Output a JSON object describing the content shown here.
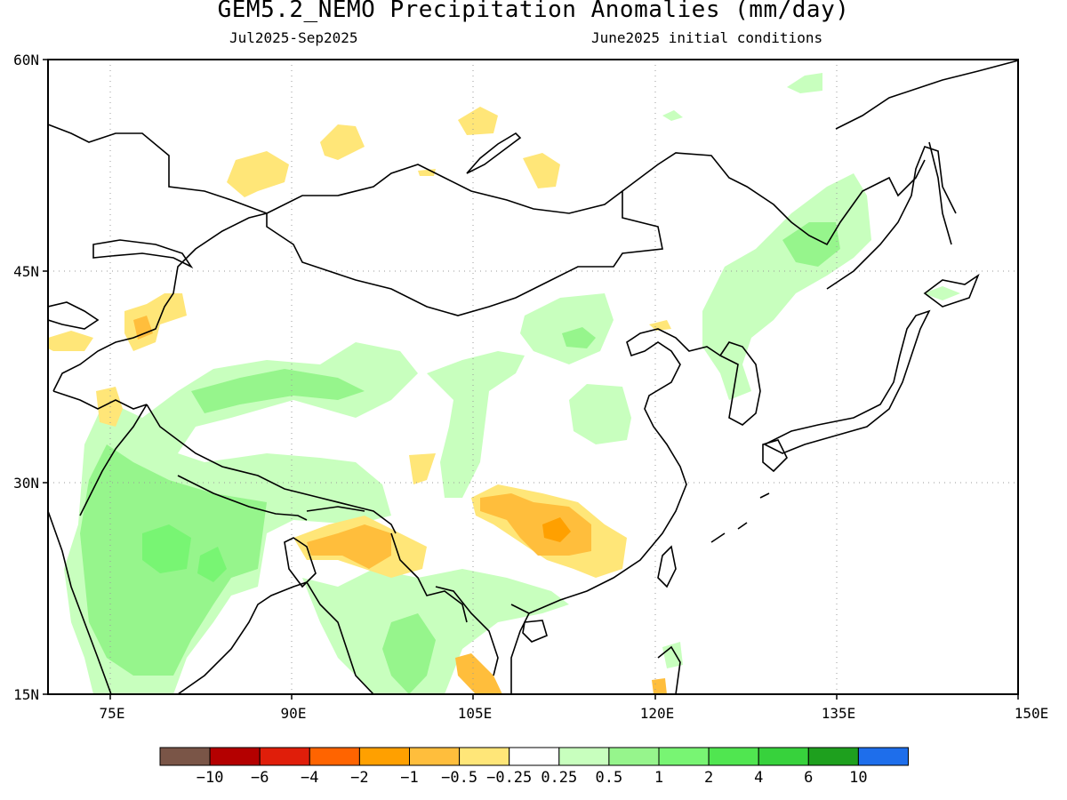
{
  "header": {
    "title": "GEM5.2_NEMO Precipitation Anomalies (mm/day)",
    "period": "Jul2025-Sep2025",
    "init": "June2025 initial conditions"
  },
  "axes": {
    "lat_labels": [
      "60N",
      "45N",
      "30N",
      "15N"
    ],
    "lon_labels": [
      "75E",
      "90E",
      "105E",
      "120E",
      "135E",
      "150E"
    ]
  },
  "colorbar": {
    "colors": [
      "#7a5547",
      "#b40000",
      "#e01e0a",
      "#ff6400",
      "#ffa000",
      "#ffbe3c",
      "#ffe678",
      "#ffffff",
      "#c8ffbe",
      "#96f58c",
      "#78f573",
      "#50e650",
      "#37d23c",
      "#1ea01e",
      "#1e6eeb"
    ],
    "labels": [
      "-10",
      "-6",
      "-4",
      "-2",
      "-1",
      "-0.5",
      "-0.25",
      "0.25",
      "0.5",
      "1",
      "2",
      "4",
      "6",
      "10"
    ]
  }
}
